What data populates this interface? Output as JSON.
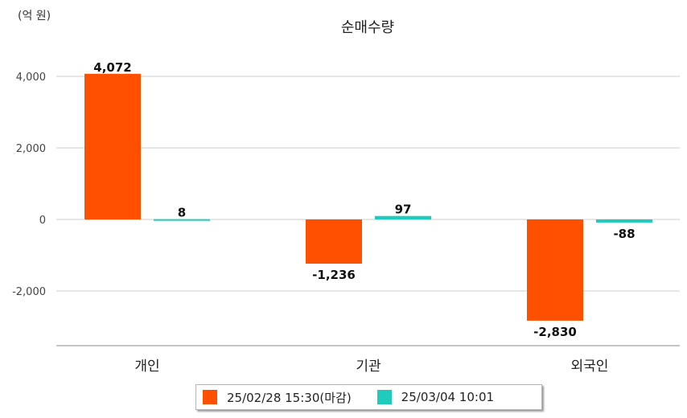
{
  "unit_label": "(억 원)",
  "chart_data": {
    "type": "bar",
    "title": "순매수량",
    "categories": [
      "개인",
      "기관",
      "외국인"
    ],
    "series": [
      {
        "name": "25/02/28 15:30(마감)",
        "color": "#ff5000",
        "values": [
          4072,
          -1236,
          -2830
        ],
        "labels": [
          "4,072",
          "-1,236",
          "-2,830"
        ]
      },
      {
        "name": "25/03/04 10:01",
        "color": "#1ecbbd",
        "values": [
          8,
          97,
          -88
        ],
        "labels": [
          "8",
          "97",
          "-88"
        ]
      }
    ],
    "y_ticks": [
      4000,
      2000,
      0,
      -2000
    ],
    "y_tick_labels": [
      "4,000",
      "2,000",
      "0",
      "-2,000"
    ],
    "ylim": [
      -3550,
      4850
    ],
    "grid": true,
    "legend_position": "bottom"
  }
}
